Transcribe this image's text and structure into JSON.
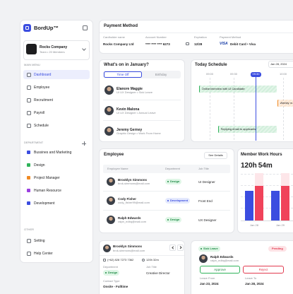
{
  "sidebar": {
    "brand": "BordUp™",
    "company": {
      "name": "Rocks Company",
      "meta": "Team • 20 Members"
    },
    "main_menu_label": "MAIN MENU",
    "main_menu": [
      "Dashboard",
      "Employee",
      "Recruitment",
      "Payroll",
      "Schedule"
    ],
    "department_label": "DEPARTMENT",
    "departments": [
      {
        "name": "Bussines and Marketing",
        "color": "#3b4de0"
      },
      {
        "name": "Design",
        "color": "#2fb35a"
      },
      {
        "name": "Project Manager",
        "color": "#f08a24"
      },
      {
        "name": "Human Resource",
        "color": "#9b3fe0"
      },
      {
        "name": "Development",
        "color": "#3b4de0"
      }
    ],
    "other_label": "OTHER",
    "other_menu": [
      "Setting",
      "Help Center"
    ]
  },
  "payment": {
    "title": "Payment Method",
    "fields": [
      {
        "label": "Cardholder name",
        "value": "Rocks Company Ltd"
      },
      {
        "label": "Account Number",
        "value": "**** **** **** 6273"
      },
      {
        "label": "Expiration",
        "value": "12/28"
      },
      {
        "label": "Payment Method",
        "brand": "VISA",
        "value": "Debit Card • Visa"
      }
    ]
  },
  "whats_on": {
    "title": "What's on in January?",
    "tabs": [
      "Time Off",
      "Birthday"
    ],
    "people": [
      {
        "name": "Elanore Maggie",
        "detail": "UI UX Designer • Sick Leave"
      },
      {
        "name": "Kevin Malona",
        "detail": "UI UX Designer • Annual Leave"
      },
      {
        "name": "Jeremy Gerney",
        "detail": "Graphic Design • Work From Home"
      }
    ]
  },
  "schedule": {
    "title": "Today Schedule",
    "date": "Jan 28, 2024",
    "times": [
      "09:00",
      "09:30",
      "10:00"
    ],
    "now": "09:30",
    "events": [
      {
        "label": "Online interview with UI Candidate",
        "color": "#2fb35a"
      },
      {
        "label": "Weekly m...",
        "color": "#f08a24"
      },
      {
        "label": "Replying email to applicants",
        "color": "#2fb35a"
      }
    ]
  },
  "employee": {
    "title": "Employee",
    "action": "See Details",
    "columns": [
      "Employee Name",
      "Department",
      "Job Title"
    ],
    "rows": [
      {
        "name": "Brooklyn Simmons",
        "email": "brok-simmons@mail.com",
        "department": "Design",
        "job": "UI Designer"
      },
      {
        "name": "Cody Fisher",
        "email": "cody_fisher99@mail.com",
        "department": "Development",
        "job": "Front End"
      },
      {
        "name": "Ralph Edwards",
        "email": "ralph_edbq@mail.com",
        "department": "Design",
        "job": "UX Designer"
      }
    ]
  },
  "chart_data": {
    "type": "bar",
    "title": "Member Work Hours",
    "total_hours": "120h",
    "total_minutes": "54m",
    "categories": [
      "Jan 28",
      "Jan 29"
    ],
    "series": [
      {
        "color": "#3b4de0",
        "values": [
          6,
          6
        ]
      },
      {
        "color": "#f0435a",
        "values": [
          7,
          7
        ]
      }
    ]
  },
  "profile": {
    "name": "Brooklyn Simmons",
    "email": "brok-simmons@mail.com",
    "phone": "(+62) 828 7273 7362",
    "hours": "120h 32m",
    "department_label": "Department",
    "department": "Design",
    "job_label": "Job Title",
    "job": "Creative Director",
    "contact_label": "Contact Type",
    "contact": "Onsite - Fulltime"
  },
  "leave": {
    "type": "Sick Leave",
    "status": "Pending",
    "name": "Ralph Edwards",
    "email": "ralph_edbq@mail.com",
    "approve": "Approve",
    "reject": "Reject",
    "from_label": "Leave From",
    "from": "Jan 23, 2024",
    "to_label": "Leave To",
    "to": "Jan 28, 2024"
  }
}
